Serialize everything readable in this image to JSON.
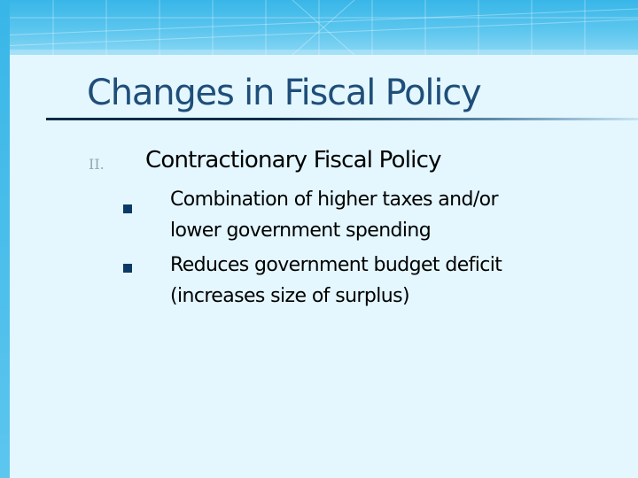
{
  "slide": {
    "title": "Changes in Fiscal Policy",
    "section": {
      "number": "II.",
      "heading": "Contractionary Fiscal Policy"
    },
    "bullets": [
      {
        "lines": [
          "Combination of higher taxes and/or",
          "lower government spending"
        ]
      },
      {
        "lines": [
          "Reduces government budget deficit",
          "(increases size of surplus)"
        ]
      }
    ]
  },
  "theme": {
    "background": "#e4f7ff",
    "banner": "#38b6e8",
    "title_color": "#1f4e79",
    "bullet_color": "#0b3a66"
  }
}
